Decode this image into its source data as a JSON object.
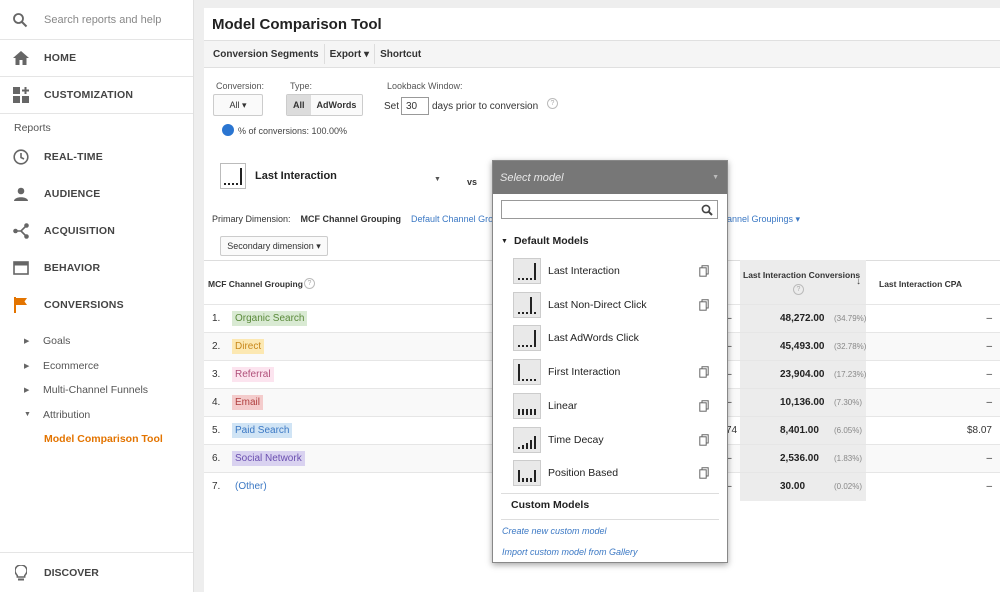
{
  "sidebar": {
    "search_placeholder": "Search reports and help",
    "home": "HOME",
    "customization": "CUSTOMIZATION",
    "reports_section": "Reports",
    "realtime": "REAL-TIME",
    "audience": "AUDIENCE",
    "acquisition": "ACQUISITION",
    "behavior": "BEHAVIOR",
    "conversions": "CONVERSIONS",
    "sub": {
      "goals": "Goals",
      "ecommerce": "Ecommerce",
      "mcf": "Multi-Channel Funnels",
      "attribution": "Attribution",
      "model_comparison": "Model Comparison Tool"
    },
    "discover": "DISCOVER"
  },
  "main": {
    "title": "Model Comparison Tool",
    "toolbar": {
      "conversion_segments": "Conversion Segments",
      "export": "Export ▾",
      "shortcut": "Shortcut"
    },
    "conversion": {
      "label": "Conversion:",
      "value": "All ▾"
    },
    "type": {
      "label": "Type:",
      "all": "All",
      "adwords": "AdWords"
    },
    "lookback": {
      "label": "Lookback Window:",
      "set": "Set",
      "days": "30",
      "suffix": "days prior to conversion"
    },
    "pct_conversions": "% of conversions: 100.00%",
    "model_left": "Last Interaction",
    "vs": "vs",
    "primary_dimension_label": "Primary Dimension:",
    "primary_dimension_value": "MCF Channel Grouping",
    "default_channel_grouping": "Default Channel Grouping",
    "channel_groupings": "hannel Groupings ▾",
    "secondary_dimension": "Secondary dimension ▾",
    "columns": {
      "channel": "MCF Channel Grouping",
      "conversions": "Last Interaction Conversions",
      "cpa": "Last Interaction CPA"
    },
    "rows": [
      {
        "n": "1.",
        "label": "Organic Search",
        "color": "#d9ead3",
        "text": "#5a8a3a",
        "dash": "–",
        "conv": "48,272.00",
        "pct": "(34.79%)",
        "cpa": "–"
      },
      {
        "n": "2.",
        "label": "Direct",
        "color": "#fce8b2",
        "text": "#c7871b",
        "dash": "–",
        "conv": "45,493.00",
        "pct": "(32.78%)",
        "cpa": "–"
      },
      {
        "n": "3.",
        "label": "Referral",
        "color": "#fce4ef",
        "text": "#b0507a",
        "dash": "–",
        "conv": "23,904.00",
        "pct": "(17.23%)",
        "cpa": "–"
      },
      {
        "n": "4.",
        "label": "Email",
        "color": "#f4cccc",
        "text": "#b04040",
        "dash": "–",
        "conv": "10,136.00",
        "pct": "(7.30%)",
        "cpa": "–"
      },
      {
        "n": "5.",
        "label": "Paid Search",
        "color": "#d0e4f5",
        "text": "#3b78c4",
        "dash": "74",
        "conv": "8,401.00",
        "pct": "(6.05%)",
        "cpa": "$8.07"
      },
      {
        "n": "6.",
        "label": "Social Network",
        "color": "#d9d2f0",
        "text": "#6b4fb0",
        "dash": "–",
        "conv": "2,536.00",
        "pct": "(1.83%)",
        "cpa": "–"
      },
      {
        "n": "7.",
        "label": "(Other)",
        "color": "transparent",
        "text": "#3b78c4",
        "dash": "–",
        "conv": "30.00",
        "pct": "(0.02%)",
        "cpa": "–"
      }
    ]
  },
  "dropdown": {
    "placeholder": "Select model",
    "default_models": "Default Models",
    "models": [
      {
        "label": "Last Interaction",
        "copy": true
      },
      {
        "label": "Last Non-Direct Click",
        "copy": true
      },
      {
        "label": "Last AdWords Click",
        "copy": false
      },
      {
        "label": "First Interaction",
        "copy": true
      },
      {
        "label": "Linear",
        "copy": true
      },
      {
        "label": "Time Decay",
        "copy": true
      },
      {
        "label": "Position Based",
        "copy": true
      }
    ],
    "custom_models": "Custom Models",
    "create_custom": "Create new custom model",
    "import_custom": "Import custom model from Gallery"
  }
}
